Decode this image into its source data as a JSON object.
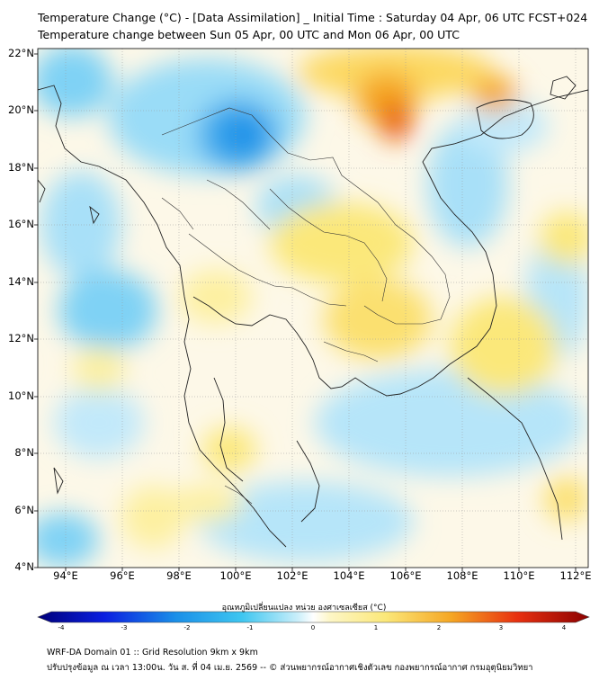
{
  "header": {
    "title_line1": "Temperature Change (°C) - [Data Assimilation] _ Initial Time : Saturday 04 Apr, 06 UTC FCST+024",
    "title_line2": "Temperature change between Sun 05 Apr, 00 UTC and Mon 06 Apr, 00 UTC"
  },
  "map": {
    "lat_labels": [
      "22°N",
      "20°N",
      "18°N",
      "16°N",
      "14°N",
      "12°N",
      "10°N",
      "8°N",
      "6°N",
      "4°N"
    ],
    "lon_labels": [
      "94°E",
      "96°E",
      "98°E",
      "100°E",
      "102°E",
      "104°E",
      "106°E",
      "108°E",
      "110°E",
      "112°E"
    ],
    "colors": {
      "cold_strong": "#1a8fe8",
      "cold": "#7fd2f5",
      "warm": "#fbe87a",
      "hot": "#f08a1c",
      "hot_strong": "#e85a10",
      "coast_line": "#222222"
    }
  },
  "colorbar": {
    "label": "อุณหภูมิเปลี่ยนแปลง หน่วย องศาเซลเซียส (°C)",
    "ticks": [
      "-4",
      "-3",
      "-2",
      "-1",
      "0",
      "1",
      "2",
      "3",
      "4"
    ],
    "min_color": "#00007a",
    "max_color": "#8b0000"
  },
  "footer": {
    "line1": "WRF-DA Domain 01 :: Grid Resolution 9km x 9km",
    "line2": "ปรับปรุงข้อมูล ณ เวลา 13:00น. วัน ส. ที่ 04 เม.ย. 2569 -- © ส่วนพยากรณ์อากาศเชิงตัวเลข กองพยากรณ์อากาศ กรมอุตุนิยมวิทยา"
  }
}
